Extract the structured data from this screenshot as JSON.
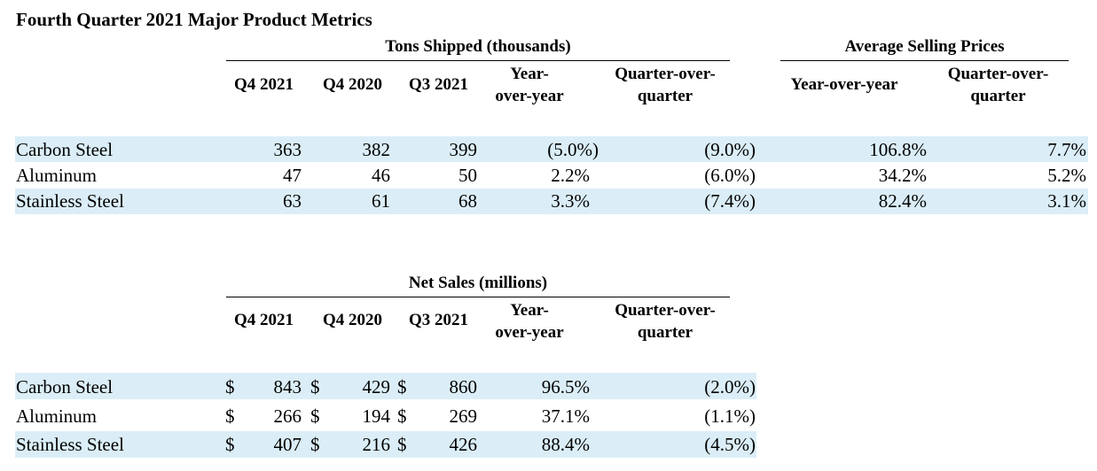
{
  "title": "Fourth Quarter 2021 Major Product Metrics",
  "tons": {
    "group_label": "Tons Shipped (thousands)",
    "columns": [
      "Q4 2021",
      "Q4 2020",
      "Q3 2021",
      "Year-\nover-year",
      "Quarter-over-\nquarter"
    ],
    "rows": [
      {
        "label": "Carbon Steel",
        "values": [
          "363",
          "382",
          "399",
          "(5.0%)",
          "(9.0%)"
        ]
      },
      {
        "label": "Aluminum",
        "values": [
          "47",
          "46",
          "50",
          "2.2%",
          "(6.0%)"
        ]
      },
      {
        "label": "Stainless Steel",
        "values": [
          "63",
          "61",
          "68",
          "3.3%",
          "(7.4%)"
        ]
      }
    ]
  },
  "asp": {
    "group_label": "Average Selling Prices",
    "columns": [
      "Year-over-year",
      "Quarter-over-\nquarter"
    ],
    "rows": [
      {
        "values": [
          "106.8%",
          "7.7%"
        ]
      },
      {
        "values": [
          "34.2%",
          "5.2%"
        ]
      },
      {
        "values": [
          "82.4%",
          "3.1%"
        ]
      }
    ]
  },
  "net_sales": {
    "group_label": "Net Sales (millions)",
    "columns": [
      "Q4 2021",
      "Q4 2020",
      "Q3 2021",
      "Year-\nover-year",
      "Quarter-over-\nquarter"
    ],
    "currency_symbol": "$",
    "rows": [
      {
        "label": "Carbon Steel",
        "values": [
          "843",
          "429",
          "860",
          "96.5%",
          "(2.0%)"
        ]
      },
      {
        "label": "Aluminum",
        "values": [
          "266",
          "194",
          "269",
          "37.1%",
          "(1.1%)"
        ]
      },
      {
        "label": "Stainless Steel",
        "values": [
          "407",
          "216",
          "426",
          "88.4%",
          "(4.5%)"
        ]
      }
    ]
  },
  "colors": {
    "band": "#dbeef7"
  }
}
